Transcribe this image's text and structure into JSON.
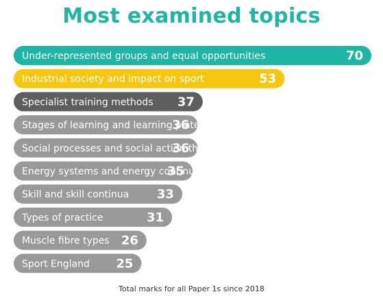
{
  "title": "Most examined topics",
  "footnote": "Total marks for all Paper 1s since 2018",
  "chart_data": {
    "type": "bar",
    "orientation": "horizontal",
    "title": "Most examined topics",
    "xlabel": "Total marks for all Paper 1s since 2018",
    "categories": [
      "Under-represented groups and equal opportunities",
      "Industrial society and impact on sport",
      "Specialist training methods",
      "Stages of learning and learning plateau",
      "Social processes and social action theory",
      "Energy systems and energy continuum",
      "Skill and skill continua",
      "Types of practice",
      "Muscle fibre types",
      "Sport England"
    ],
    "values": [
      70,
      53,
      37,
      36,
      36,
      35,
      33,
      31,
      26,
      25
    ],
    "colors": [
      "#1fb5a4",
      "#f7c611",
      "#5e5e5e",
      "#999999",
      "#999999",
      "#999999",
      "#999999",
      "#999999",
      "#999999",
      "#999999"
    ],
    "xlim": [
      0,
      70
    ],
    "grid": false,
    "data_labels": true
  }
}
